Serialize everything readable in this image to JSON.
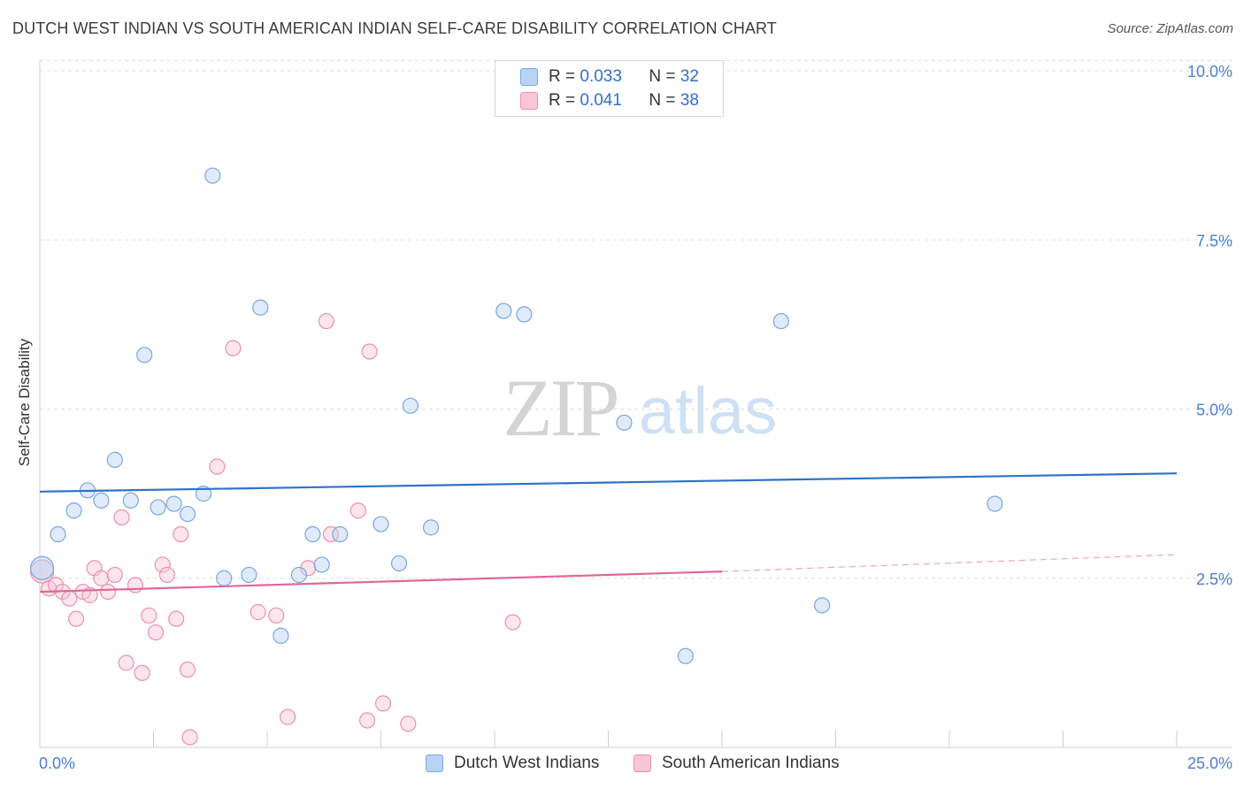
{
  "header": {
    "title": "DUTCH WEST INDIAN VS SOUTH AMERICAN INDIAN SELF-CARE DISABILITY CORRELATION CHART",
    "source": "Source: ZipAtlas.com"
  },
  "watermark": {
    "zip": "ZIP",
    "atlas": "atlas"
  },
  "legend": {
    "r_label": "R =",
    "n_label": "N =",
    "series": [
      {
        "r": "0.033",
        "n": "32"
      },
      {
        "r": "0.041",
        "n": "38"
      }
    ]
  },
  "colors": {
    "blue_fill": "#b9d3f4",
    "blue_stroke": "#7aa6e0",
    "blue_line": "#2f72c8",
    "pink_fill": "#f8c6d4",
    "pink_stroke": "#e892ab",
    "pink_line": "#e0669a",
    "tick_label": "#4a7fd0"
  },
  "chart_data": {
    "type": "scatter",
    "title": "DUTCH WEST INDIAN VS SOUTH AMERICAN INDIAN SELF-CARE DISABILITY CORRELATION CHART",
    "xlabel": "",
    "ylabel": "Self-Care Disability",
    "xlim": [
      0,
      25
    ],
    "ylim": [
      0,
      10
    ],
    "x_tick_labels": [
      "0.0%",
      "25.0%"
    ],
    "y_ticks": [
      2.5,
      5.0,
      7.5,
      10.0
    ],
    "y_tick_labels": [
      "2.5%",
      "5.0%",
      "7.5%",
      "10.0%"
    ],
    "grid": true,
    "legend_position": "top-center",
    "series": [
      {
        "name": "Dutch West Indians",
        "r": 0.033,
        "n": 32,
        "trend": {
          "x": [
            0,
            25
          ],
          "y": [
            3.78,
            4.05
          ],
          "style": "solid"
        },
        "points": [
          [
            0.05,
            2.65
          ],
          [
            0.4,
            3.15
          ],
          [
            0.75,
            3.5
          ],
          [
            1.05,
            3.8
          ],
          [
            1.35,
            3.65
          ],
          [
            1.65,
            4.25
          ],
          [
            2.0,
            3.65
          ],
          [
            2.3,
            5.8
          ],
          [
            2.6,
            3.55
          ],
          [
            2.95,
            3.6
          ],
          [
            3.25,
            3.45
          ],
          [
            3.6,
            3.75
          ],
          [
            3.8,
            8.45
          ],
          [
            4.05,
            2.5
          ],
          [
            4.6,
            2.55
          ],
          [
            4.85,
            6.5
          ],
          [
            5.3,
            1.65
          ],
          [
            5.7,
            2.55
          ],
          [
            6.0,
            3.15
          ],
          [
            6.2,
            2.7
          ],
          [
            6.6,
            3.15
          ],
          [
            7.5,
            3.3
          ],
          [
            7.9,
            2.72
          ],
          [
            8.15,
            5.05
          ],
          [
            8.6,
            3.25
          ],
          [
            10.2,
            6.45
          ],
          [
            10.65,
            6.4
          ],
          [
            12.85,
            4.8
          ],
          [
            14.2,
            1.35
          ],
          [
            16.3,
            6.3
          ],
          [
            17.2,
            2.1
          ],
          [
            21.0,
            3.6
          ]
        ]
      },
      {
        "name": "South American Indians",
        "r": 0.041,
        "n": 38,
        "trend": {
          "x": [
            0,
            15
          ],
          "y": [
            2.3,
            2.6
          ],
          "style": "solid",
          "extended_to": [
            25,
            2.85
          ]
        },
        "points": [
          [
            0.05,
            2.6
          ],
          [
            0.2,
            2.35
          ],
          [
            0.35,
            2.4
          ],
          [
            0.5,
            2.3
          ],
          [
            0.65,
            2.2
          ],
          [
            0.8,
            1.9
          ],
          [
            0.95,
            2.3
          ],
          [
            1.1,
            2.25
          ],
          [
            1.2,
            2.65
          ],
          [
            1.35,
            2.5
          ],
          [
            1.5,
            2.3
          ],
          [
            1.65,
            2.55
          ],
          [
            1.8,
            3.4
          ],
          [
            1.9,
            1.25
          ],
          [
            2.1,
            2.4
          ],
          [
            2.25,
            1.1
          ],
          [
            2.4,
            1.95
          ],
          [
            2.55,
            1.7
          ],
          [
            2.7,
            2.7
          ],
          [
            2.8,
            2.55
          ],
          [
            3.0,
            1.9
          ],
          [
            3.1,
            3.15
          ],
          [
            3.25,
            1.15
          ],
          [
            3.3,
            0.15
          ],
          [
            3.9,
            4.15
          ],
          [
            4.25,
            5.9
          ],
          [
            4.8,
            2.0
          ],
          [
            5.2,
            1.95
          ],
          [
            5.45,
            0.45
          ],
          [
            5.9,
            2.65
          ],
          [
            6.3,
            6.3
          ],
          [
            6.4,
            3.15
          ],
          [
            7.0,
            3.5
          ],
          [
            7.2,
            0.4
          ],
          [
            7.25,
            5.85
          ],
          [
            7.55,
            0.65
          ],
          [
            8.1,
            0.35
          ],
          [
            10.4,
            1.85
          ]
        ]
      }
    ]
  },
  "bottom_legend": [
    {
      "label": "Dutch West Indians"
    },
    {
      "label": "South American Indians"
    }
  ]
}
